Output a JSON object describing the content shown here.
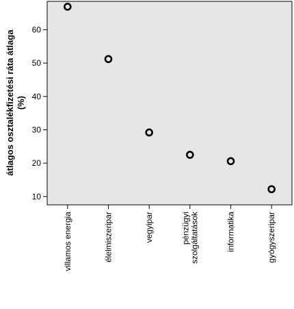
{
  "chart_data": {
    "type": "scatter",
    "title": "",
    "xlabel": "",
    "ylabel_lines": [
      "átlagos osztalékfizetési ráta átlaga",
      "(%)"
    ],
    "categories": [
      "villamos energia",
      "élelmiszeripar",
      "vegyipar",
      "pénzügyi szolgáltatások",
      "informatika",
      "gyógyszeripar"
    ],
    "category_label_lines": [
      [
        "villamos energia"
      ],
      [
        "élelmiszeripar"
      ],
      [
        "vegyipar"
      ],
      [
        "pénzügyi",
        "szolgáltatások"
      ],
      [
        "informatika"
      ],
      [
        "gyógyszeripar"
      ]
    ],
    "values": [
      66.9,
      51.2,
      29.2,
      22.5,
      20.6,
      12.2
    ],
    "ylim": [
      7.5,
      68.5
    ],
    "yticks": [
      10,
      20,
      30,
      40,
      50,
      60
    ],
    "grid": false,
    "legend": "none",
    "colors": {
      "plot_background": "#e6e6e6",
      "marker_stroke": "#000000",
      "marker_fill": "#e6e6e6"
    }
  }
}
